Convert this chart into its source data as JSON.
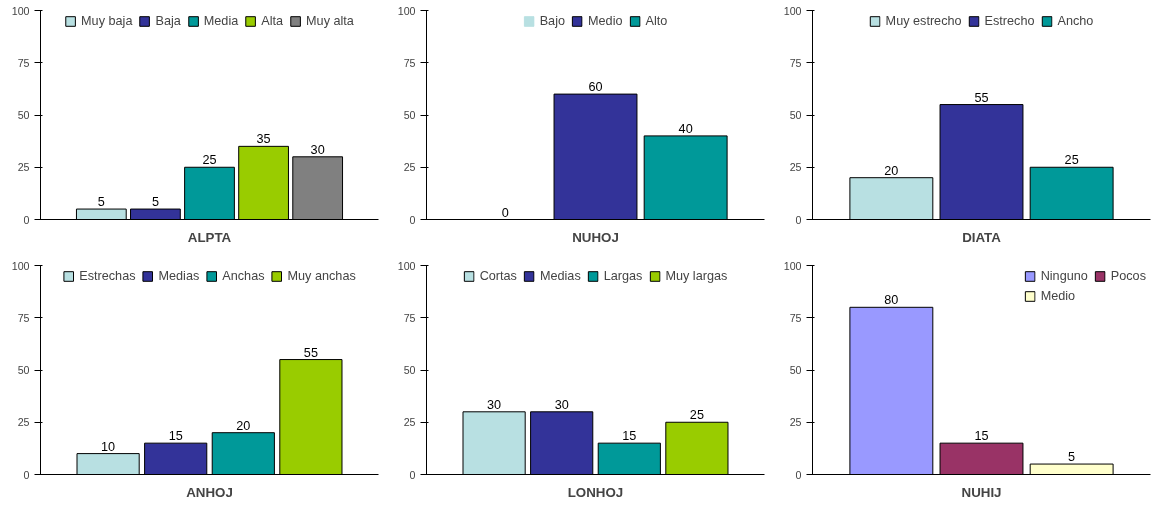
{
  "chart_data": [
    {
      "type": "bar",
      "xlabel": "ALPTA",
      "categories": [
        null
      ],
      "ylim": [
        0,
        100
      ],
      "yticks": [
        0,
        25,
        50,
        75,
        100
      ],
      "data_labels": true,
      "legend": "top",
      "series": [
        {
          "name": "Muy baja",
          "color": "#b8e0e2",
          "values": [
            5
          ]
        },
        {
          "name": "Baja",
          "color": "#333399",
          "values": [
            5
          ]
        },
        {
          "name": "Media",
          "color": "#009999",
          "values": [
            25
          ]
        },
        {
          "name": "Alta",
          "color": "#99cc00",
          "values": [
            35
          ]
        },
        {
          "name": "Muy alta",
          "color": "#808080",
          "values": [
            30
          ]
        }
      ]
    },
    {
      "type": "bar",
      "xlabel": "NUHOJ",
      "categories": [
        null
      ],
      "ylim": [
        0,
        100
      ],
      "yticks": [
        0,
        25,
        50,
        75,
        100
      ],
      "data_labels": true,
      "legend": "top",
      "series": [
        {
          "name": "Bajo",
          "color": "#b8e0e2",
          "values": [
            0
          ]
        },
        {
          "name": "Medio",
          "color": "#333399",
          "values": [
            60
          ]
        },
        {
          "name": "Alto",
          "color": "#009999",
          "values": [
            40
          ]
        }
      ]
    },
    {
      "type": "bar",
      "xlabel": "DIATA",
      "categories": [
        null
      ],
      "ylim": [
        0,
        100
      ],
      "yticks": [
        0,
        25,
        50,
        75,
        100
      ],
      "data_labels": true,
      "legend": "top",
      "series": [
        {
          "name": "Muy estrecho",
          "color": "#b8e0e2",
          "values": [
            20
          ]
        },
        {
          "name": "Estrecho",
          "color": "#333399",
          "values": [
            55
          ]
        },
        {
          "name": "Ancho",
          "color": "#009999",
          "values": [
            25
          ]
        }
      ]
    },
    {
      "type": "bar",
      "xlabel": "ANHOJ",
      "categories": [
        null
      ],
      "ylim": [
        0,
        100
      ],
      "yticks": [
        0,
        25,
        50,
        75,
        100
      ],
      "data_labels": true,
      "legend": "top",
      "series": [
        {
          "name": "Estrechas",
          "color": "#b8e0e2",
          "values": [
            10
          ]
        },
        {
          "name": "Medias",
          "color": "#333399",
          "values": [
            15
          ]
        },
        {
          "name": "Anchas",
          "color": "#009999",
          "values": [
            20
          ]
        },
        {
          "name": "Muy anchas",
          "color": "#99cc00",
          "values": [
            55
          ]
        }
      ]
    },
    {
      "type": "bar",
      "xlabel": "LONHOJ",
      "categories": [
        null
      ],
      "ylim": [
        0,
        100
      ],
      "yticks": [
        0,
        25,
        50,
        75,
        100
      ],
      "data_labels": true,
      "legend": "top",
      "series": [
        {
          "name": "Cortas",
          "color": "#b8e0e2",
          "values": [
            30
          ]
        },
        {
          "name": "Medias",
          "color": "#333399",
          "values": [
            30
          ]
        },
        {
          "name": "Largas",
          "color": "#009999",
          "values": [
            15
          ]
        },
        {
          "name": "Muy largas",
          "color": "#99cc00",
          "values": [
            25
          ]
        }
      ]
    },
    {
      "type": "bar",
      "xlabel": "NUHIJ",
      "categories": [
        null
      ],
      "ylim": [
        0,
        100
      ],
      "yticks": [
        0,
        25,
        50,
        75,
        100
      ],
      "data_labels": true,
      "legend": "top right",
      "series": [
        {
          "name": "Ninguno",
          "color": "#9999ff",
          "values": [
            80
          ]
        },
        {
          "name": "Pocos",
          "color": "#993366",
          "values": [
            15
          ]
        },
        {
          "name": "Medio",
          "color": "#ffffcc",
          "values": [
            5
          ]
        }
      ]
    }
  ]
}
